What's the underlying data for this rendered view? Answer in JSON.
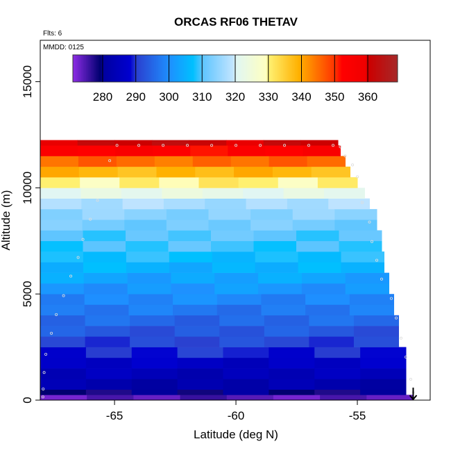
{
  "chart_data": {
    "type": "heatmap",
    "title": "ORCAS RF06 THETAV",
    "subtitle": "Flts: 6",
    "annotation": "MMDD: 0125",
    "xlabel": "Latitude (deg N)",
    "ylabel": "Altitude (m)",
    "xlim": [
      -68.06,
      -52.0
    ],
    "ylim": [
      0,
      16950
    ],
    "xticks": [
      -65,
      -60,
      -55
    ],
    "yticks": [
      0,
      5000,
      10000,
      15000
    ],
    "grid": false,
    "colorbar": {
      "range": [
        271,
        369
      ],
      "ticks": [
        280,
        290,
        300,
        310,
        320,
        330,
        340,
        350,
        360
      ],
      "stops": [
        [
          271,
          "#8a2be2"
        ],
        [
          279,
          "#000070"
        ],
        [
          280,
          "#0000a0"
        ],
        [
          288,
          "#0000d0"
        ],
        [
          290,
          "#2a40d0"
        ],
        [
          300,
          "#1e90ff"
        ],
        [
          307,
          "#00c0ff"
        ],
        [
          310,
          "#5fc5ff"
        ],
        [
          319,
          "#c0e4ff"
        ],
        [
          320,
          "#e0f6f4"
        ],
        [
          329,
          "#ffffc0"
        ],
        [
          330,
          "#fff070"
        ],
        [
          339,
          "#ffb000"
        ],
        [
          340,
          "#ffa500"
        ],
        [
          350,
          "#ff3000"
        ],
        [
          352,
          "#ff0000"
        ],
        [
          359,
          "#f00000"
        ],
        [
          360,
          "#cc0000"
        ],
        [
          369,
          "#a52a2a"
        ]
      ]
    },
    "layers": [
      {
        "alt": [
          0,
          250
        ],
        "theta": 274,
        "lat_max": -52.7
      },
      {
        "alt": [
          250,
          500
        ],
        "theta": 279,
        "lat_max": -53.0
      },
      {
        "alt": [
          500,
          1000
        ],
        "theta": 282,
        "lat_max": -53.0
      },
      {
        "alt": [
          1000,
          1500
        ],
        "theta": 284,
        "lat_max": -53.0
      },
      {
        "alt": [
          1500,
          2000
        ],
        "theta": 286,
        "lat_max": -53.0
      },
      {
        "alt": [
          2000,
          2500
        ],
        "theta": 289,
        "lat_max": -53.0
      },
      {
        "alt": [
          2500,
          3000
        ],
        "theta": 291,
        "lat_max": -53.3
      },
      {
        "alt": [
          3000,
          3500
        ],
        "theta": 293,
        "lat_max": -53.3
      },
      {
        "alt": [
          3500,
          4000
        ],
        "theta": 295,
        "lat_max": -53.3
      },
      {
        "alt": [
          4000,
          4500
        ],
        "theta": 297,
        "lat_max": -53.5
      },
      {
        "alt": [
          4500,
          5000
        ],
        "theta": 299,
        "lat_max": -53.5
      },
      {
        "alt": [
          5000,
          5500
        ],
        "theta": 301,
        "lat_max": -53.7
      },
      {
        "alt": [
          5500,
          6000
        ],
        "theta": 303,
        "lat_max": -53.7
      },
      {
        "alt": [
          6000,
          6500
        ],
        "theta": 305,
        "lat_max": -53.9
      },
      {
        "alt": [
          6500,
          7000
        ],
        "theta": 307,
        "lat_max": -53.9
      },
      {
        "alt": [
          7000,
          7500
        ],
        "theta": 309,
        "lat_max": -54.0
      },
      {
        "alt": [
          7500,
          8000
        ],
        "theta": 310,
        "lat_max": -54.0
      },
      {
        "alt": [
          8000,
          8500
        ],
        "theta": 312,
        "lat_max": -54.2
      },
      {
        "alt": [
          8500,
          9000
        ],
        "theta": 314,
        "lat_max": -54.2
      },
      {
        "alt": [
          9000,
          9500
        ],
        "theta": 317,
        "lat_max": -54.5
      },
      {
        "alt": [
          9500,
          10000
        ],
        "theta": 322,
        "lat_max": -54.7
      },
      {
        "alt": [
          10000,
          10500
        ],
        "theta": 330,
        "lat_max": -55.0
      },
      {
        "alt": [
          10500,
          11000
        ],
        "theta": 338,
        "lat_max": -55.3
      },
      {
        "alt": [
          11000,
          11500
        ],
        "theta": 345,
        "lat_max": -55.5
      },
      {
        "alt": [
          11500,
          12000
        ],
        "theta": 353,
        "lat_max": -55.7
      },
      {
        "alt": [
          12000,
          12250
        ],
        "theta": 361,
        "lat_max": -55.8
      }
    ],
    "track": [
      [
        -67.95,
        150
      ],
      [
        -67.94,
        525
      ],
      [
        -67.9,
        1300
      ],
      [
        -67.83,
        2160
      ],
      [
        -67.6,
        3150
      ],
      [
        -67.4,
        4030
      ],
      [
        -67.1,
        4920
      ],
      [
        -66.8,
        5840
      ],
      [
        -66.5,
        6720
      ],
      [
        -66.3,
        7570
      ],
      [
        -66.0,
        8520
      ],
      [
        -65.7,
        9410
      ],
      [
        -65.2,
        11280
      ],
      [
        -64.9,
        12000
      ],
      [
        -64,
        12000
      ],
      [
        -63,
        12000
      ],
      [
        -62,
        12000
      ],
      [
        -61,
        12000
      ],
      [
        -60,
        12000
      ],
      [
        -59,
        12000
      ],
      [
        -58,
        12000
      ],
      [
        -57,
        12000
      ],
      [
        -56,
        12000
      ],
      [
        -55.7,
        11930
      ],
      [
        -55.5,
        11500
      ],
      [
        -55.2,
        11080
      ],
      [
        -55.0,
        10520
      ],
      [
        -54.8,
        9310
      ],
      [
        -54.5,
        8390
      ],
      [
        -54.4,
        7470
      ],
      [
        -54.2,
        6590
      ],
      [
        -54.0,
        5700
      ],
      [
        -53.6,
        4790
      ],
      [
        -53.4,
        3870
      ],
      [
        -53.2,
        2920
      ],
      [
        -53.0,
        2030
      ],
      [
        -52.8,
        980
      ],
      [
        -52.7,
        360
      ]
    ],
    "marker": {
      "lat": -52.7,
      "alt": 0,
      "symbol": "down-arrow",
      "color": "#000000"
    }
  }
}
